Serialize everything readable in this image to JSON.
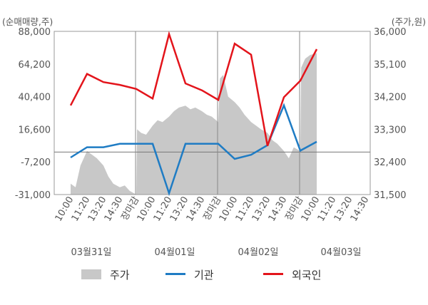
{
  "chart_data": {
    "type": "line",
    "left_axis_unit": "(순매매량,주)",
    "right_axis_unit": "(주가,원)",
    "y_left_ticks": [
      "88,000",
      "64,200",
      "40,400",
      "16,600",
      "-7,200",
      "-31,000"
    ],
    "y_right_ticks": [
      "36,000",
      "35,100",
      "34,200",
      "33,300",
      "32,400",
      "31,500"
    ],
    "y_left_range": [
      -31000,
      88000
    ],
    "y_right_range": [
      31500,
      36000
    ],
    "x_labels": [
      {
        "text": "10:00",
        "close": false
      },
      {
        "text": "11:20",
        "close": false
      },
      {
        "text": "13:20",
        "close": false
      },
      {
        "text": "14:30",
        "close": false
      },
      {
        "text": "장마감",
        "close": true
      },
      {
        "text": "10:00",
        "close": false
      },
      {
        "text": "11:20",
        "close": false
      },
      {
        "text": "13:20",
        "close": false
      },
      {
        "text": "14:30",
        "close": false
      },
      {
        "text": "장마감",
        "close": true
      },
      {
        "text": "10:00",
        "close": false
      },
      {
        "text": "11:20",
        "close": false
      },
      {
        "text": "13:20",
        "close": false
      },
      {
        "text": "14:30",
        "close": false
      },
      {
        "text": "장마감",
        "close": true
      },
      {
        "text": "10:00",
        "close": false
      },
      {
        "text": "11:20",
        "close": false
      },
      {
        "text": "13:20",
        "close": false
      },
      {
        "text": "14:30",
        "close": false
      }
    ],
    "dates": [
      "03월31일",
      "04월01일",
      "04월02일",
      "04월03일"
    ],
    "legend": [
      {
        "label": "주가",
        "color": "#c8c8c8",
        "kind": "area"
      },
      {
        "label": "기관",
        "color": "#1f7cc4",
        "kind": "line"
      },
      {
        "label": "외국인",
        "color": "#e3141b",
        "kind": "line"
      }
    ],
    "series": [
      {
        "name": "기관",
        "color": "#1f7cc4",
        "x": [
          0,
          1,
          2,
          3,
          4,
          5,
          6,
          7,
          8,
          9,
          10,
          11,
          12,
          13,
          14,
          15,
          16
        ],
        "values": [
          -4000,
          3500,
          3500,
          6000,
          6000,
          6000,
          -30000,
          6000,
          6000,
          6000,
          -5000,
          -2000,
          5000,
          34000,
          1000,
          7500,
          null
        ]
      },
      {
        "name": "외국인",
        "color": "#e3141b",
        "x": [
          0,
          1,
          2,
          3,
          4,
          5,
          6,
          7,
          8,
          9,
          10,
          11,
          12,
          13,
          14,
          15,
          16
        ],
        "values": [
          34000,
          57000,
          51000,
          49000,
          46000,
          39000,
          86000,
          50000,
          45000,
          38000,
          79000,
          71000,
          4500,
          40000,
          52000,
          75000,
          null
        ]
      }
    ],
    "price": {
      "name": "주가",
      "color": "#c8c8c8",
      "x": [
        0,
        0.3,
        0.6,
        1,
        1.3,
        1.6,
        2,
        2.3,
        2.6,
        3,
        3.3,
        3.6,
        4,
        4.05,
        4.3,
        4.6,
        5,
        5.3,
        5.6,
        6,
        6.3,
        6.6,
        7,
        7.3,
        7.6,
        8,
        8.3,
        8.6,
        9,
        9.1,
        9.3,
        9.6,
        10,
        10.3,
        10.6,
        11,
        11.3,
        11.6,
        12,
        12.3,
        12.6,
        13,
        13.3,
        13.6,
        14,
        14.05,
        14.3,
        14.6,
        15
      ],
      "values": [
        31800,
        31700,
        32300,
        32700,
        32600,
        32500,
        32300,
        32000,
        31800,
        31700,
        31750,
        31600,
        31500,
        33300,
        33200,
        33150,
        33400,
        33550,
        33500,
        33650,
        33800,
        33900,
        33950,
        33850,
        33900,
        33800,
        33700,
        33650,
        33500,
        34700,
        34800,
        34200,
        34050,
        33900,
        33700,
        33500,
        33400,
        33300,
        33200,
        33000,
        32900,
        32700,
        32500,
        32800,
        32700,
        35000,
        35250,
        35350,
        35400
      ]
    },
    "grid": false
  }
}
